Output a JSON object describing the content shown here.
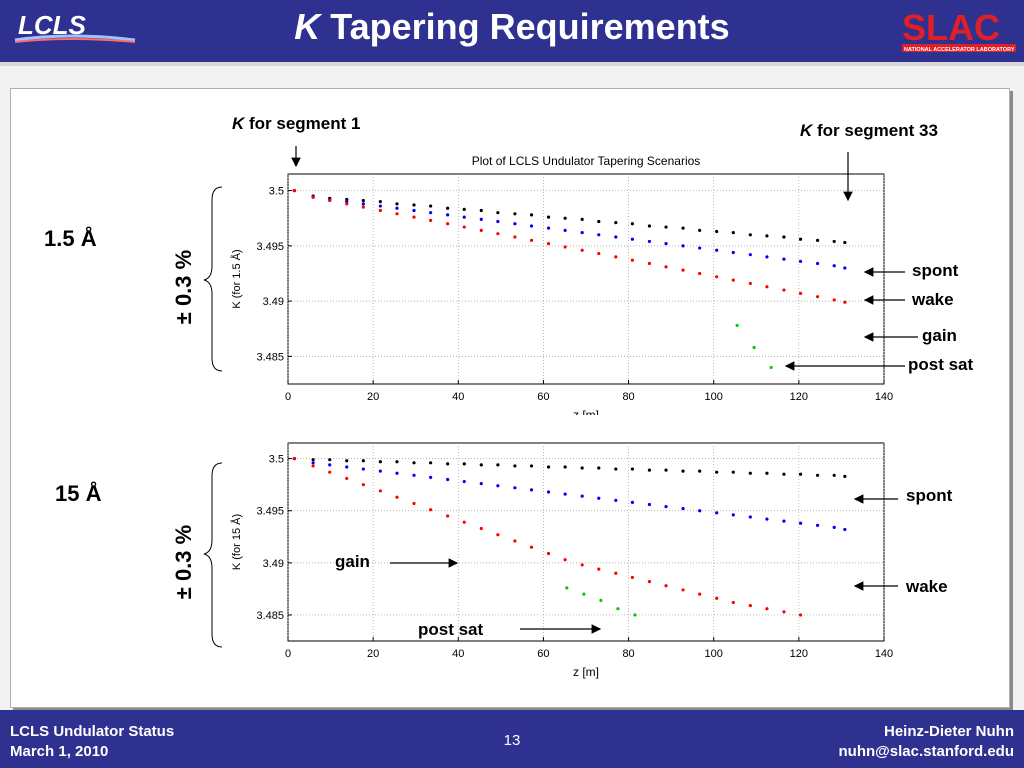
{
  "slide": {
    "title_k": "K",
    "title_rest": " Tapering Requirements",
    "lcls_logo_text": "LCLS",
    "slac_logo_text": "SLAC",
    "slac_subtext": "NATIONAL ACCELERATOR LABORATORY"
  },
  "footer": {
    "left_line1": "LCLS Undulator Status",
    "left_line2": "March 1, 2010",
    "page_number": "13",
    "right_line1": "Heinz-Dieter Nuhn",
    "right_line2": "nuhn@slac.stanford.edu"
  },
  "annotations": {
    "k_seg1_k": "K",
    "k_seg1_rest": " for segment 1",
    "k_seg33_k": "K",
    "k_seg33_rest": " for segment 33",
    "wavelength_1": "1.5 Å",
    "wavelength_2": "15 Å",
    "tolerance_1": "± 0.3 %",
    "tolerance_2": "± 0.3 %",
    "p1_spont": "spont",
    "p1_wake": "wake",
    "p1_gain": "gain",
    "p1_postsat": "post sat",
    "p2_spont": "spont",
    "p2_wake": "wake",
    "p2_gain": "gain",
    "p2_postsat": "post sat"
  },
  "colors": {
    "header_bg": "#2e318f",
    "spont": "#000000",
    "wake": "#0000ff",
    "gain": "#ff0000",
    "post_sat": "#00cc00"
  },
  "chart_data": [
    {
      "type": "scatter",
      "title": "Plot of LCLS Undulator Tapering Scenarios",
      "xlabel": "z [m]",
      "ylabel": "K (for 1.5 Å)",
      "xlim": [
        0,
        140
      ],
      "ylim": [
        3.4825,
        3.5015
      ],
      "xticks": [
        0,
        20,
        40,
        60,
        80,
        100,
        120,
        140
      ],
      "yticks": [
        3.485,
        3.49,
        3.495,
        3.5
      ],
      "grid": true,
      "series": [
        {
          "name": "spont",
          "color": "#000000",
          "x": [
            1.5,
            5.9,
            9.8,
            13.8,
            17.7,
            21.7,
            25.6,
            29.6,
            33.5,
            37.5,
            41.4,
            45.4,
            49.3,
            53.3,
            57.2,
            61.2,
            65.1,
            69.1,
            73,
            77,
            80.9,
            84.9,
            88.8,
            92.8,
            96.7,
            100.7,
            104.6,
            108.6,
            112.5,
            116.5,
            120.4,
            124.4,
            128.3,
            130.8
          ],
          "y": [
            3.5,
            3.4995,
            3.4993,
            3.4992,
            3.4991,
            3.499,
            3.4988,
            3.4987,
            3.4986,
            3.4984,
            3.4983,
            3.4982,
            3.498,
            3.4979,
            3.4978,
            3.4976,
            3.4975,
            3.4974,
            3.4972,
            3.4971,
            3.497,
            3.4968,
            3.4967,
            3.4966,
            3.4964,
            3.4963,
            3.4962,
            3.496,
            3.4959,
            3.4958,
            3.4956,
            3.4955,
            3.4954,
            3.4953
          ]
        },
        {
          "name": "wake",
          "color": "#0000ff",
          "x": [
            1.5,
            5.9,
            9.8,
            13.8,
            17.7,
            21.7,
            25.6,
            29.6,
            33.5,
            37.5,
            41.4,
            45.4,
            49.3,
            53.3,
            57.2,
            61.2,
            65.1,
            69.1,
            73,
            77,
            80.9,
            84.9,
            88.8,
            92.8,
            96.7,
            100.7,
            104.6,
            108.6,
            112.5,
            116.5,
            120.4,
            124.4,
            128.3,
            130.8
          ],
          "y": [
            3.5,
            3.4994,
            3.4992,
            3.499,
            3.4988,
            3.4986,
            3.4984,
            3.4982,
            3.498,
            3.4978,
            3.4976,
            3.4974,
            3.4972,
            3.497,
            3.4968,
            3.4966,
            3.4964,
            3.4962,
            3.496,
            3.4958,
            3.4956,
            3.4954,
            3.4952,
            3.495,
            3.4948,
            3.4946,
            3.4944,
            3.4942,
            3.494,
            3.4938,
            3.4936,
            3.4934,
            3.4932,
            3.493
          ]
        },
        {
          "name": "gain",
          "color": "#ff0000",
          "x": [
            1.5,
            5.9,
            9.8,
            13.8,
            17.7,
            21.7,
            25.6,
            29.6,
            33.5,
            37.5,
            41.4,
            45.4,
            49.3,
            53.3,
            57.2,
            61.2,
            65.1,
            69.1,
            73,
            77,
            80.9,
            84.9,
            88.8,
            92.8,
            96.7,
            100.7,
            104.6,
            108.6,
            112.5,
            116.5,
            120.4,
            124.4,
            128.3,
            130.8
          ],
          "y": [
            3.5,
            3.4994,
            3.4991,
            3.4988,
            3.4985,
            3.4982,
            3.4979,
            3.4976,
            3.4973,
            3.497,
            3.4967,
            3.4964,
            3.4961,
            3.4958,
            3.4955,
            3.4952,
            3.4949,
            3.4946,
            3.4943,
            3.494,
            3.4937,
            3.4934,
            3.4931,
            3.4928,
            3.4925,
            3.4922,
            3.4919,
            3.4916,
            3.4913,
            3.491,
            3.4907,
            3.4904,
            3.4901,
            3.4899
          ]
        },
        {
          "name": "post sat",
          "color": "#00cc00",
          "x": [
            105.5,
            109.5,
            113.5
          ],
          "y": [
            3.4878,
            3.4858,
            3.484
          ]
        }
      ]
    },
    {
      "type": "scatter",
      "title": "",
      "xlabel": "z [m]",
      "ylabel": "K (for 15 Å)",
      "xlim": [
        0,
        140
      ],
      "ylim": [
        3.4825,
        3.5015
      ],
      "xticks": [
        0,
        20,
        40,
        60,
        80,
        100,
        120,
        140
      ],
      "yticks": [
        3.485,
        3.49,
        3.495,
        3.5
      ],
      "grid": true,
      "series": [
        {
          "name": "spont",
          "color": "#000000",
          "x": [
            1.5,
            5.9,
            9.8,
            13.8,
            17.7,
            21.7,
            25.6,
            29.6,
            33.5,
            37.5,
            41.4,
            45.4,
            49.3,
            53.3,
            57.2,
            61.2,
            65.1,
            69.1,
            73,
            77,
            80.9,
            84.9,
            88.8,
            92.8,
            96.7,
            100.7,
            104.6,
            108.6,
            112.5,
            116.5,
            120.4,
            124.4,
            128.3,
            130.8
          ],
          "y": [
            3.5,
            3.4999,
            3.4999,
            3.4998,
            3.4998,
            3.4997,
            3.4997,
            3.4996,
            3.4996,
            3.4995,
            3.4995,
            3.4994,
            3.4994,
            3.4993,
            3.4993,
            3.4992,
            3.4992,
            3.4991,
            3.4991,
            3.499,
            3.499,
            3.4989,
            3.4989,
            3.4988,
            3.4988,
            3.4987,
            3.4987,
            3.4986,
            3.4986,
            3.4985,
            3.4985,
            3.4984,
            3.4984,
            3.4983
          ]
        },
        {
          "name": "wake",
          "color": "#0000ff",
          "x": [
            1.5,
            5.9,
            9.8,
            13.8,
            17.7,
            21.7,
            25.6,
            29.6,
            33.5,
            37.5,
            41.4,
            45.4,
            49.3,
            53.3,
            57.2,
            61.2,
            65.1,
            69.1,
            73,
            77,
            80.9,
            84.9,
            88.8,
            92.8,
            96.7,
            100.7,
            104.6,
            108.6,
            112.5,
            116.5,
            120.4,
            124.4,
            128.3,
            130.8
          ],
          "y": [
            3.5,
            3.4996,
            3.4994,
            3.4992,
            3.499,
            3.4988,
            3.4986,
            3.4984,
            3.4982,
            3.498,
            3.4978,
            3.4976,
            3.4974,
            3.4972,
            3.497,
            3.4968,
            3.4966,
            3.4964,
            3.4962,
            3.496,
            3.4958,
            3.4956,
            3.4954,
            3.4952,
            3.495,
            3.4948,
            3.4946,
            3.4944,
            3.4942,
            3.494,
            3.4938,
            3.4936,
            3.4934,
            3.4932
          ]
        },
        {
          "name": "gain",
          "color": "#ff0000",
          "x": [
            1.5,
            5.9,
            9.8,
            13.8,
            17.7,
            21.7,
            25.6,
            29.6,
            33.5,
            37.5,
            41.4,
            45.4,
            49.3,
            53.3,
            57.2,
            61.2,
            65.1,
            69.1,
            73,
            77,
            80.9,
            84.9,
            88.8,
            92.8,
            96.7,
            100.7,
            104.6,
            108.6,
            112.5,
            116.5,
            120.4
          ],
          "y": [
            3.5,
            3.4993,
            3.4987,
            3.4981,
            3.4975,
            3.4969,
            3.4963,
            3.4957,
            3.4951,
            3.4945,
            3.4939,
            3.4933,
            3.4927,
            3.4921,
            3.4915,
            3.4909,
            3.4903,
            3.4898,
            3.4894,
            3.489,
            3.4886,
            3.4882,
            3.4878,
            3.4874,
            3.487,
            3.4866,
            3.4862,
            3.4859,
            3.4856,
            3.4853,
            3.485
          ]
        },
        {
          "name": "post sat",
          "color": "#00cc00",
          "x": [
            65.5,
            69.5,
            73.5,
            77.5,
            81.5
          ],
          "y": [
            3.4876,
            3.487,
            3.4864,
            3.4856,
            3.485
          ]
        }
      ]
    }
  ]
}
